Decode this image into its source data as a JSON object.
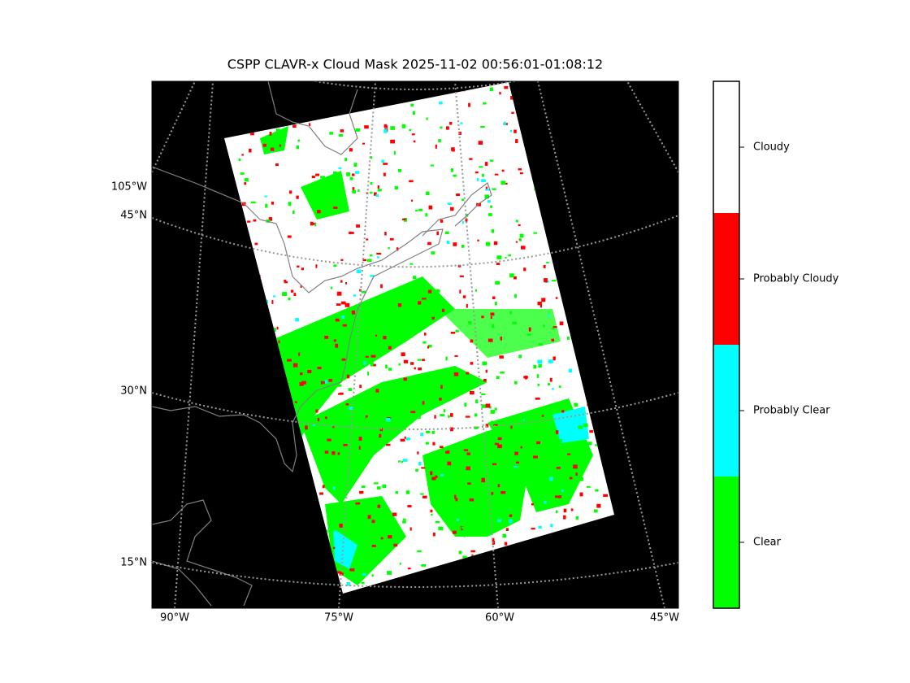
{
  "title": "CSPP CLAVR-x Cloud Mask 2025-11-02 00:56:01-01:08:12",
  "map": {
    "lon_labels": [
      "90°W",
      "75°W",
      "60°W",
      "45°W"
    ],
    "lat_labels": [
      "105°W",
      "45°N",
      "30°N",
      "15°N"
    ]
  },
  "colorbar": {
    "categories": [
      {
        "label": "Clear",
        "color": "#00ff00"
      },
      {
        "label": "Probably Clear",
        "color": "#00ffff"
      },
      {
        "label": "Probably Cloudy",
        "color": "#ff0000"
      },
      {
        "label": "Cloudy",
        "color": "#ffffff"
      }
    ]
  }
}
